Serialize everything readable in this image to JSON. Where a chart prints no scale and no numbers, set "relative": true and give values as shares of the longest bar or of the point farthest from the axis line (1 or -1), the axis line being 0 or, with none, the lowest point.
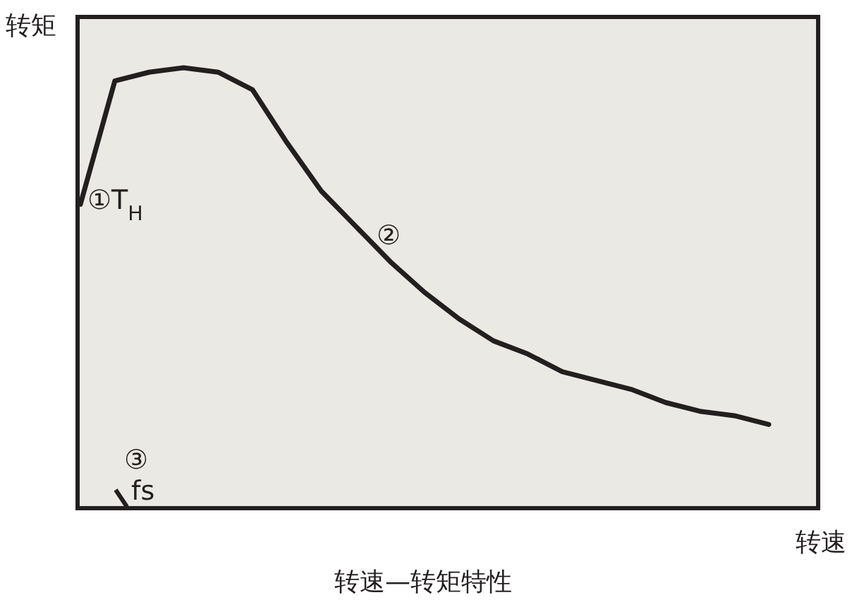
{
  "chart_data": {
    "type": "line",
    "relative": true,
    "title": "转速—转矩特性",
    "xlabel": "转速",
    "ylabel": "转矩",
    "categories": [
      null,
      null,
      null,
      null,
      null,
      null,
      null,
      null,
      null,
      null,
      null,
      null,
      null,
      null,
      null,
      null,
      null,
      null,
      null,
      null,
      null
    ],
    "series": [
      {
        "color": "#231f20",
        "values": [
          0.69,
          0.97,
          0.99,
          1,
          0.99,
          0.95,
          0.83,
          0.72,
          0.64,
          0.56,
          0.49,
          0.43,
          0.38,
          0.35,
          0.31,
          0.29,
          0.27,
          0.24,
          0.22,
          0.21,
          0.19
        ]
      }
    ],
    "annotations": [
      "①T$_{H}$",
      "②",
      "③ fs"
    ],
    "line_style": "solid"
  }
}
